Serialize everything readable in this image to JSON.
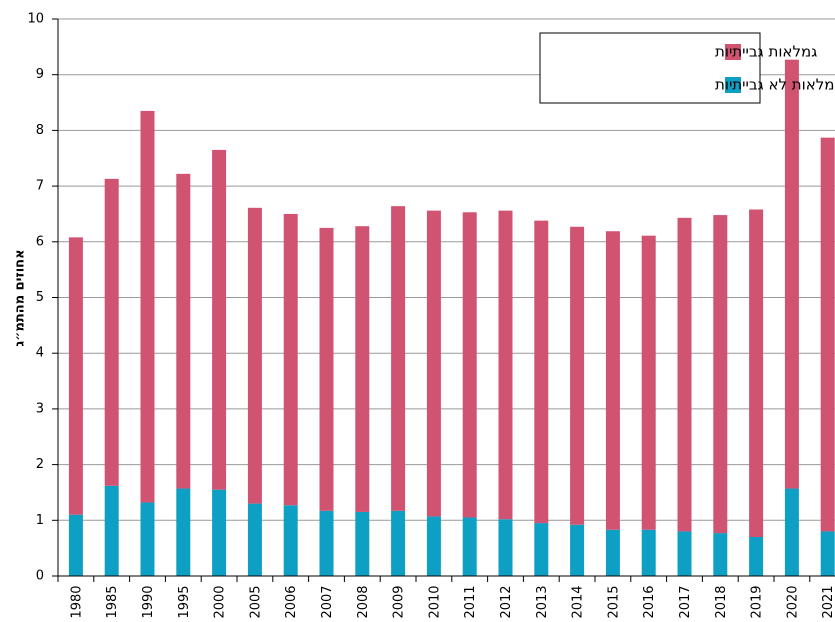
{
  "chart_data": {
    "type": "stacked-bar",
    "y_label": "אחוזים מהתמ״ג",
    "categories": [
      "1980",
      "1985",
      "1990",
      "1995",
      "2000",
      "2005",
      "2006",
      "2007",
      "2008",
      "2009",
      "2010",
      "2011",
      "2012",
      "2013",
      "2014",
      "2015",
      "2016",
      "2017",
      "2018",
      "2019",
      "2020",
      "2021"
    ],
    "series": [
      {
        "name": "גמלאות לא גבייתיות",
        "color": "#0e9fc4",
        "values": [
          1.1,
          1.62,
          1.32,
          1.57,
          1.55,
          1.3,
          1.27,
          1.17,
          1.15,
          1.17,
          1.07,
          1.05,
          1.02,
          0.95,
          0.92,
          0.83,
          0.83,
          0.8,
          0.77,
          0.7,
          1.57,
          0.8
        ]
      },
      {
        "name": "גמלאות גבייתיות",
        "color": "#d05472",
        "values": [
          4.98,
          5.51,
          7.03,
          5.65,
          6.1,
          5.31,
          5.23,
          5.08,
          5.13,
          5.47,
          5.49,
          5.48,
          5.54,
          5.43,
          5.35,
          5.36,
          5.28,
          5.63,
          5.71,
          5.88,
          7.7,
          7.07
        ]
      }
    ],
    "ylim": [
      0,
      10
    ],
    "yticks": [
      0,
      1,
      2,
      3,
      4,
      5,
      6,
      7,
      8,
      9,
      10
    ],
    "grid": true,
    "legend": "top-right"
  }
}
